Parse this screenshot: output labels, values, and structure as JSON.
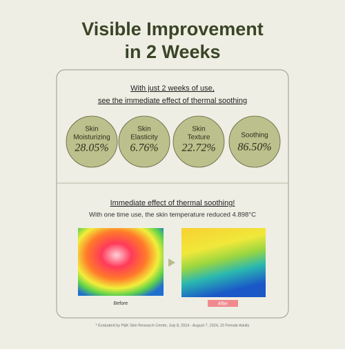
{
  "header": {
    "title_line1": "Visible Improvement",
    "title_line2": "in 2 Weeks"
  },
  "intro": {
    "line1": "With just 2 weeks of use,",
    "line2": "see the immediate effect of thermal soothing"
  },
  "stats": [
    {
      "label": [
        "Skin",
        "Moisturizing"
      ],
      "value": "28.05%"
    },
    {
      "label": [
        "Skin",
        "Elasticity"
      ],
      "value": "6.76%"
    },
    {
      "label": [
        "Skin",
        "Texture"
      ],
      "value": "22.72%"
    },
    {
      "label": [
        "Soothing"
      ],
      "value": "86.50%"
    }
  ],
  "thermal": {
    "title": "Immediate effect of thermal soothing!",
    "subtitle": "With one time use, the skin temperature reduced 4.898°C",
    "before": "Before",
    "after": "After"
  },
  "footnote": "* Evaluated by P&K Skin Research Center, July 8, 2024 - August 7, 2024, 20 Female Adults"
}
